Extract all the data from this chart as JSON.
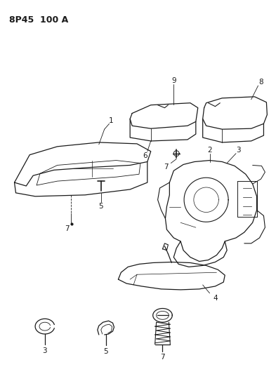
{
  "title": "8P45  100 A",
  "bg_color": "#ffffff",
  "line_color": "#1a1a1a",
  "fig_width": 3.93,
  "fig_height": 5.33,
  "dpi": 100
}
